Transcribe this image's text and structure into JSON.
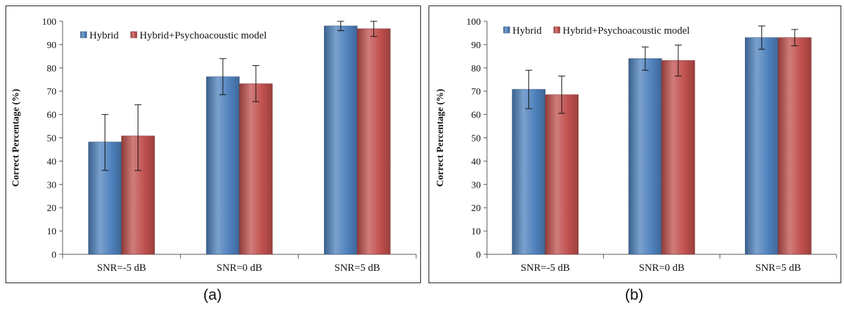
{
  "chart_data": [
    {
      "type": "bar",
      "categories": [
        "SNR=-5  dB",
        "SNR=0  dB",
        "SNR=5  dB"
      ],
      "series": [
        {
          "name": "Hybrid",
          "values": [
            48.2,
            76.2,
            98.0
          ],
          "err_low": [
            36.0,
            68.5,
            96.0
          ],
          "err_high": [
            60.0,
            84.0,
            100.0
          ]
        },
        {
          "name": "Hybrid+Psychoacoustic model",
          "values": [
            50.8,
            73.2,
            96.8
          ],
          "err_low": [
            36.0,
            65.5,
            93.5
          ],
          "err_high": [
            64.2,
            81.0,
            100.0
          ]
        }
      ],
      "ylabel": "Correct Percentage (%)",
      "xlabel": "",
      "ylim": [
        0,
        100
      ],
      "yticks": [
        0,
        10,
        20,
        30,
        40,
        50,
        60,
        70,
        80,
        90,
        100
      ],
      "legend_position": "top-left",
      "colors": [
        "#4f81bd",
        "#c0504d"
      ],
      "caption": "(a)"
    },
    {
      "type": "bar",
      "categories": [
        "SNR=-5  dB",
        "SNR=0  dB",
        "SNR=5  dB"
      ],
      "series": [
        {
          "name": "Hybrid",
          "values": [
            70.8,
            84.0,
            93.0
          ],
          "err_low": [
            62.5,
            79.0,
            88.0
          ],
          "err_high": [
            79.0,
            89.0,
            98.0
          ]
        },
        {
          "name": "Hybrid+Psychoacoustic model",
          "values": [
            68.5,
            83.2,
            93.0
          ],
          "err_low": [
            60.5,
            76.5,
            89.5
          ],
          "err_high": [
            76.5,
            89.8,
            96.5
          ]
        }
      ],
      "ylabel": "Correct Percentage (%)",
      "xlabel": "",
      "ylim": [
        0,
        100
      ],
      "yticks": [
        0,
        10,
        20,
        30,
        40,
        50,
        60,
        70,
        80,
        90,
        100
      ],
      "legend_position": "top-left",
      "colors": [
        "#4f81bd",
        "#c0504d"
      ],
      "caption": "(b)"
    }
  ]
}
